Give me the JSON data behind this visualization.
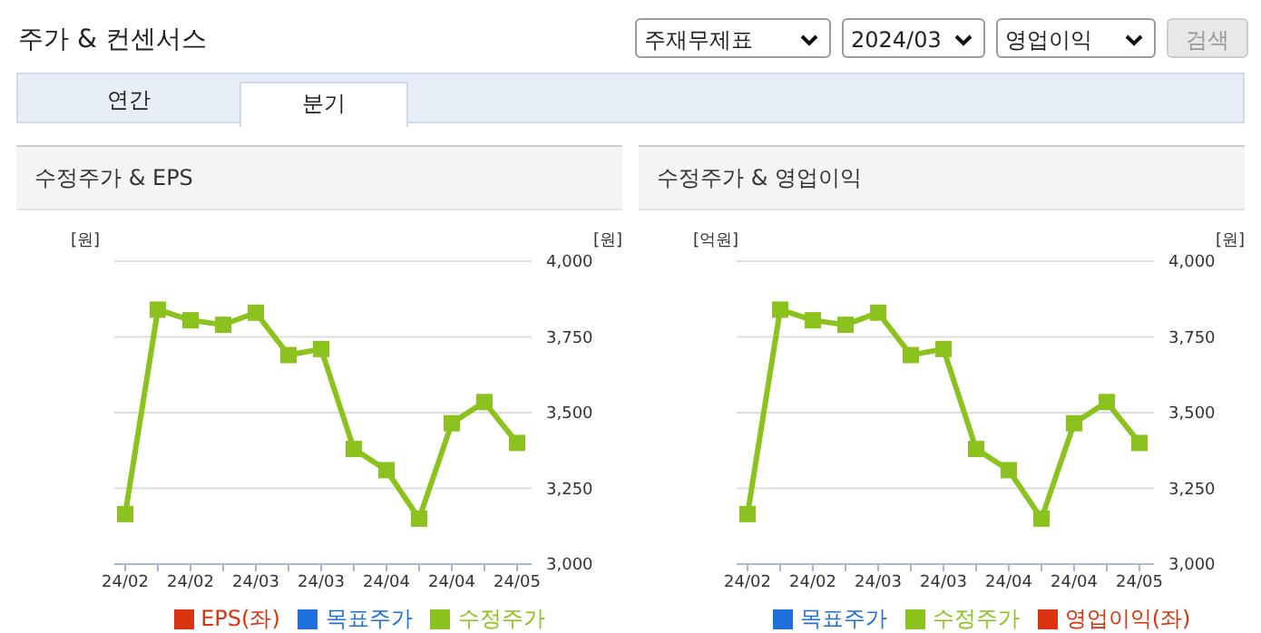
{
  "chart_data": [
    {
      "type": "line",
      "title": "수정주가 & EPS",
      "ylabel": "[원]",
      "y2label": "[원]",
      "annotations": [
        "주가 & 컨센서스",
        "주재무제표",
        "2024/03",
        "영업이익",
        "검색",
        "연간",
        "분기"
      ],
      "categories": [
        "24/02",
        null,
        "24/02",
        null,
        "24/03",
        null,
        "24/03",
        null,
        "24/04",
        null,
        "24/04",
        null,
        "24/05"
      ],
      "series": [
        {
          "name": "목표주가",
          "color": "#1f6fdc",
          "values": [
            null,
            null,
            null,
            null,
            null,
            null,
            null,
            null,
            null,
            null,
            null,
            null,
            null
          ]
        },
        {
          "name": "EPS(좌)",
          "color": "#d9330f",
          "values": [
            null,
            null,
            null,
            null,
            null,
            null,
            null,
            null,
            null,
            null,
            null,
            null,
            null
          ]
        },
        {
          "name": "수정주가",
          "color": "#8cc21e",
          "axis": "y2",
          "values": [
            3165,
            3840,
            3805,
            3790,
            3830,
            3690,
            3710,
            3380,
            3310,
            3150,
            3465,
            3535,
            3400
          ]
        }
      ],
      "y2lim": [
        3000,
        4000
      ],
      "y2ticks": [
        {
          "value": 3000,
          "label": "3,000"
        },
        {
          "value": 3250,
          "label": "3,250"
        },
        {
          "value": 3500,
          "label": "3,500"
        },
        {
          "value": 3750,
          "label": "3,750"
        },
        {
          "value": 4000,
          "label": "4,000"
        }
      ],
      "grid": "y",
      "legend": "bottom",
      "marker": "square"
    },
    {
      "type": "line",
      "title": "수정주가 & 영업이익",
      "ylabel": "[억원]",
      "y2label": "[원]",
      "categories": [
        "24/02",
        null,
        "24/02",
        null,
        "24/03",
        null,
        "24/03",
        null,
        "24/04",
        null,
        "24/04",
        null,
        "24/05"
      ],
      "series": [
        {
          "name": "목표주가",
          "color": "#1f6fdc",
          "values": [
            null,
            null,
            null,
            null,
            null,
            null,
            null,
            null,
            null,
            null,
            null,
            null,
            null
          ]
        },
        {
          "name": "영업이익(좌)",
          "color": "#d9330f",
          "values": [
            null,
            null,
            null,
            null,
            null,
            null,
            null,
            null,
            null,
            null,
            null,
            null,
            null
          ]
        },
        {
          "name": "수정주가",
          "color": "#8cc21e",
          "axis": "y2",
          "values": [
            3165,
            3840,
            3805,
            3790,
            3830,
            3690,
            3710,
            3380,
            3310,
            3150,
            3465,
            3535,
            3400
          ]
        }
      ],
      "y2lim": [
        3000,
        4000
      ],
      "y2ticks": [
        {
          "value": 3000,
          "label": "3,000"
        },
        {
          "value": 3250,
          "label": "3,250"
        },
        {
          "value": 3500,
          "label": "3,500"
        },
        {
          "value": 3750,
          "label": "3,750"
        },
        {
          "value": 4000,
          "label": "4,000"
        }
      ],
      "grid": "y",
      "legend": "bottom",
      "marker": "square"
    }
  ]
}
